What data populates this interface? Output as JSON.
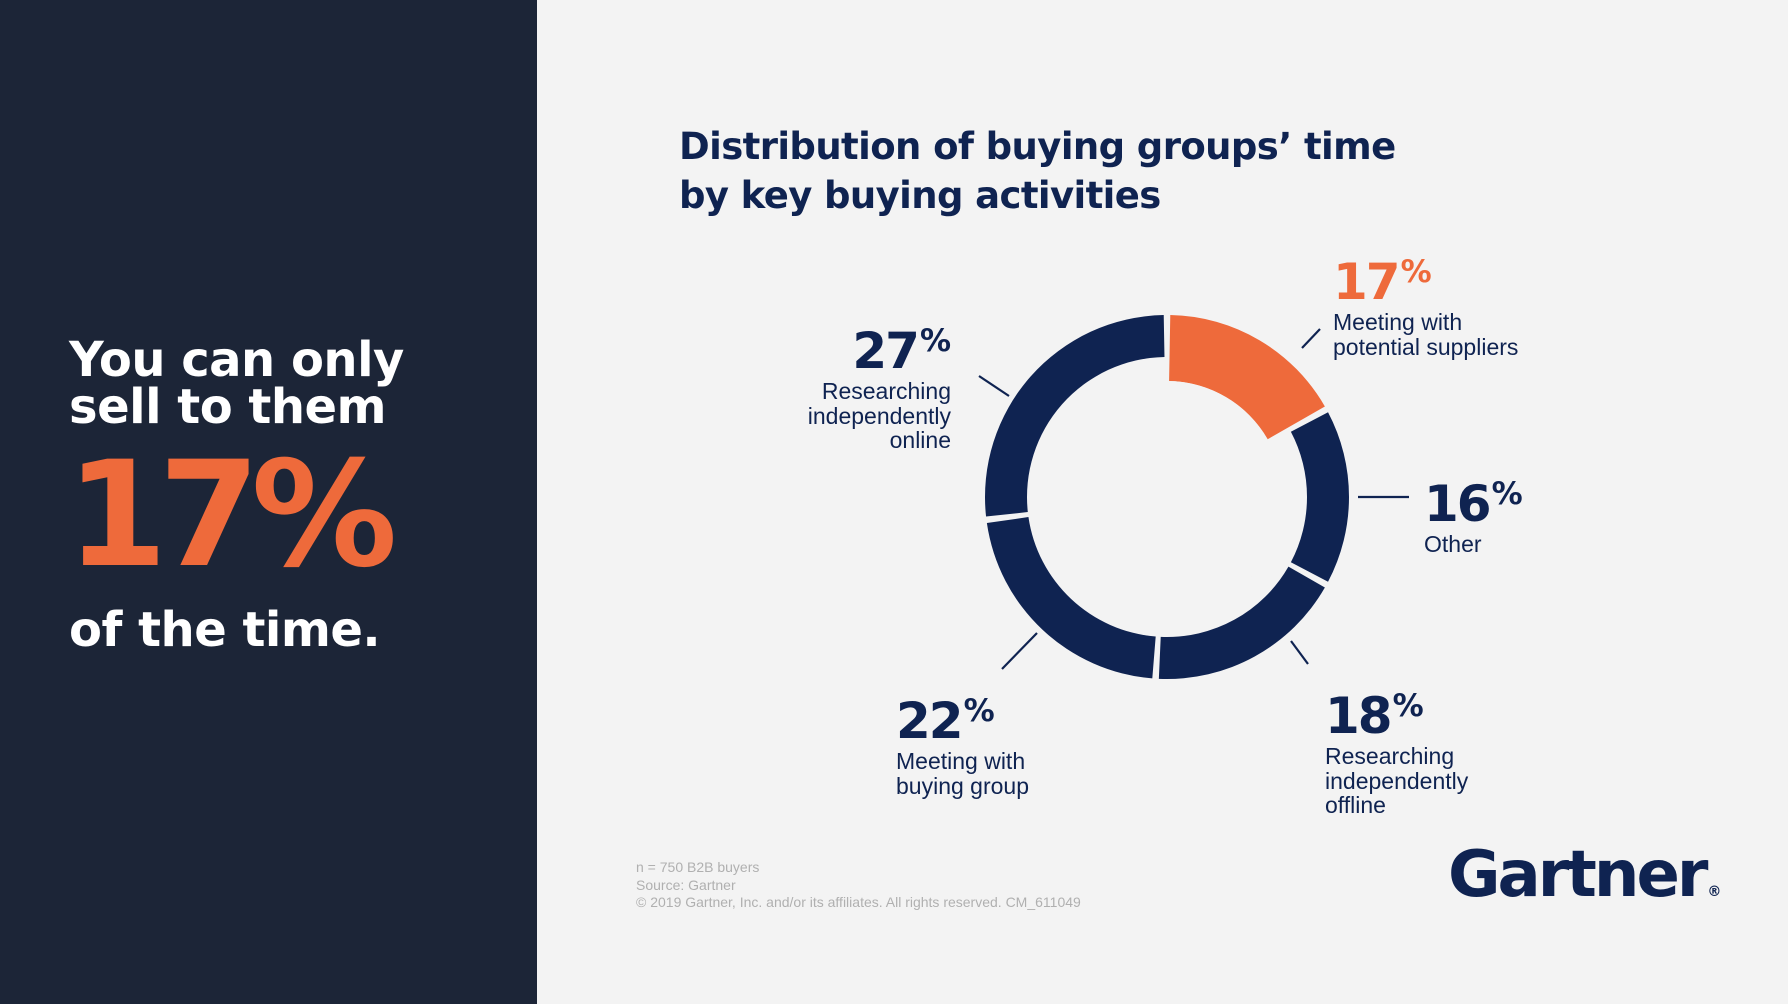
{
  "headline": {
    "line1": "You can only",
    "line2": "sell to them",
    "big_value": "17%",
    "line3": "of the time."
  },
  "chart_data": {
    "type": "pie",
    "title_lines": [
      "Distribution of buying groups’ time",
      "by key buying activities"
    ],
    "slices": [
      {
        "label": "Meeting with potential suppliers",
        "value": 17,
        "color": "#ee6a3b"
      },
      {
        "label": "Other",
        "value": 16,
        "color": "#0f2351"
      },
      {
        "label": "Researching independently offline",
        "value": 18,
        "color": "#0f2351"
      },
      {
        "label": "Meeting with buying group",
        "value": 22,
        "color": "#0f2351"
      },
      {
        "label": "Researching independently online",
        "value": 27,
        "color": "#0f2351"
      }
    ]
  },
  "labels": {
    "suppliers": {
      "value": "17",
      "sign": "%",
      "lines": [
        "Meeting with",
        "potential suppliers"
      ]
    },
    "other": {
      "value": "16",
      "sign": "%",
      "lines": [
        "Other"
      ]
    },
    "offline": {
      "value": "18",
      "sign": "%",
      "lines": [
        "Researching",
        "independently",
        "offline"
      ]
    },
    "buying_group": {
      "value": "22",
      "sign": "%",
      "lines": [
        "Meeting with",
        "buying group"
      ]
    },
    "online": {
      "value": "27",
      "sign": "%",
      "lines": [
        "Researching",
        "independently",
        "online"
      ]
    }
  },
  "footnotes": {
    "line1": "n = 750 B2B buyers",
    "line2": "Source: Gartner",
    "line3": "© 2019 Gartner, Inc. and/or its affiliates. All rights reserved. CM_611049"
  },
  "logo": {
    "text": "Gartner",
    "mark": "®"
  },
  "colors": {
    "navy": "#0f2351",
    "orange": "#ee6a3b",
    "panel": "#1c2537",
    "background": "#f3f3f3"
  }
}
